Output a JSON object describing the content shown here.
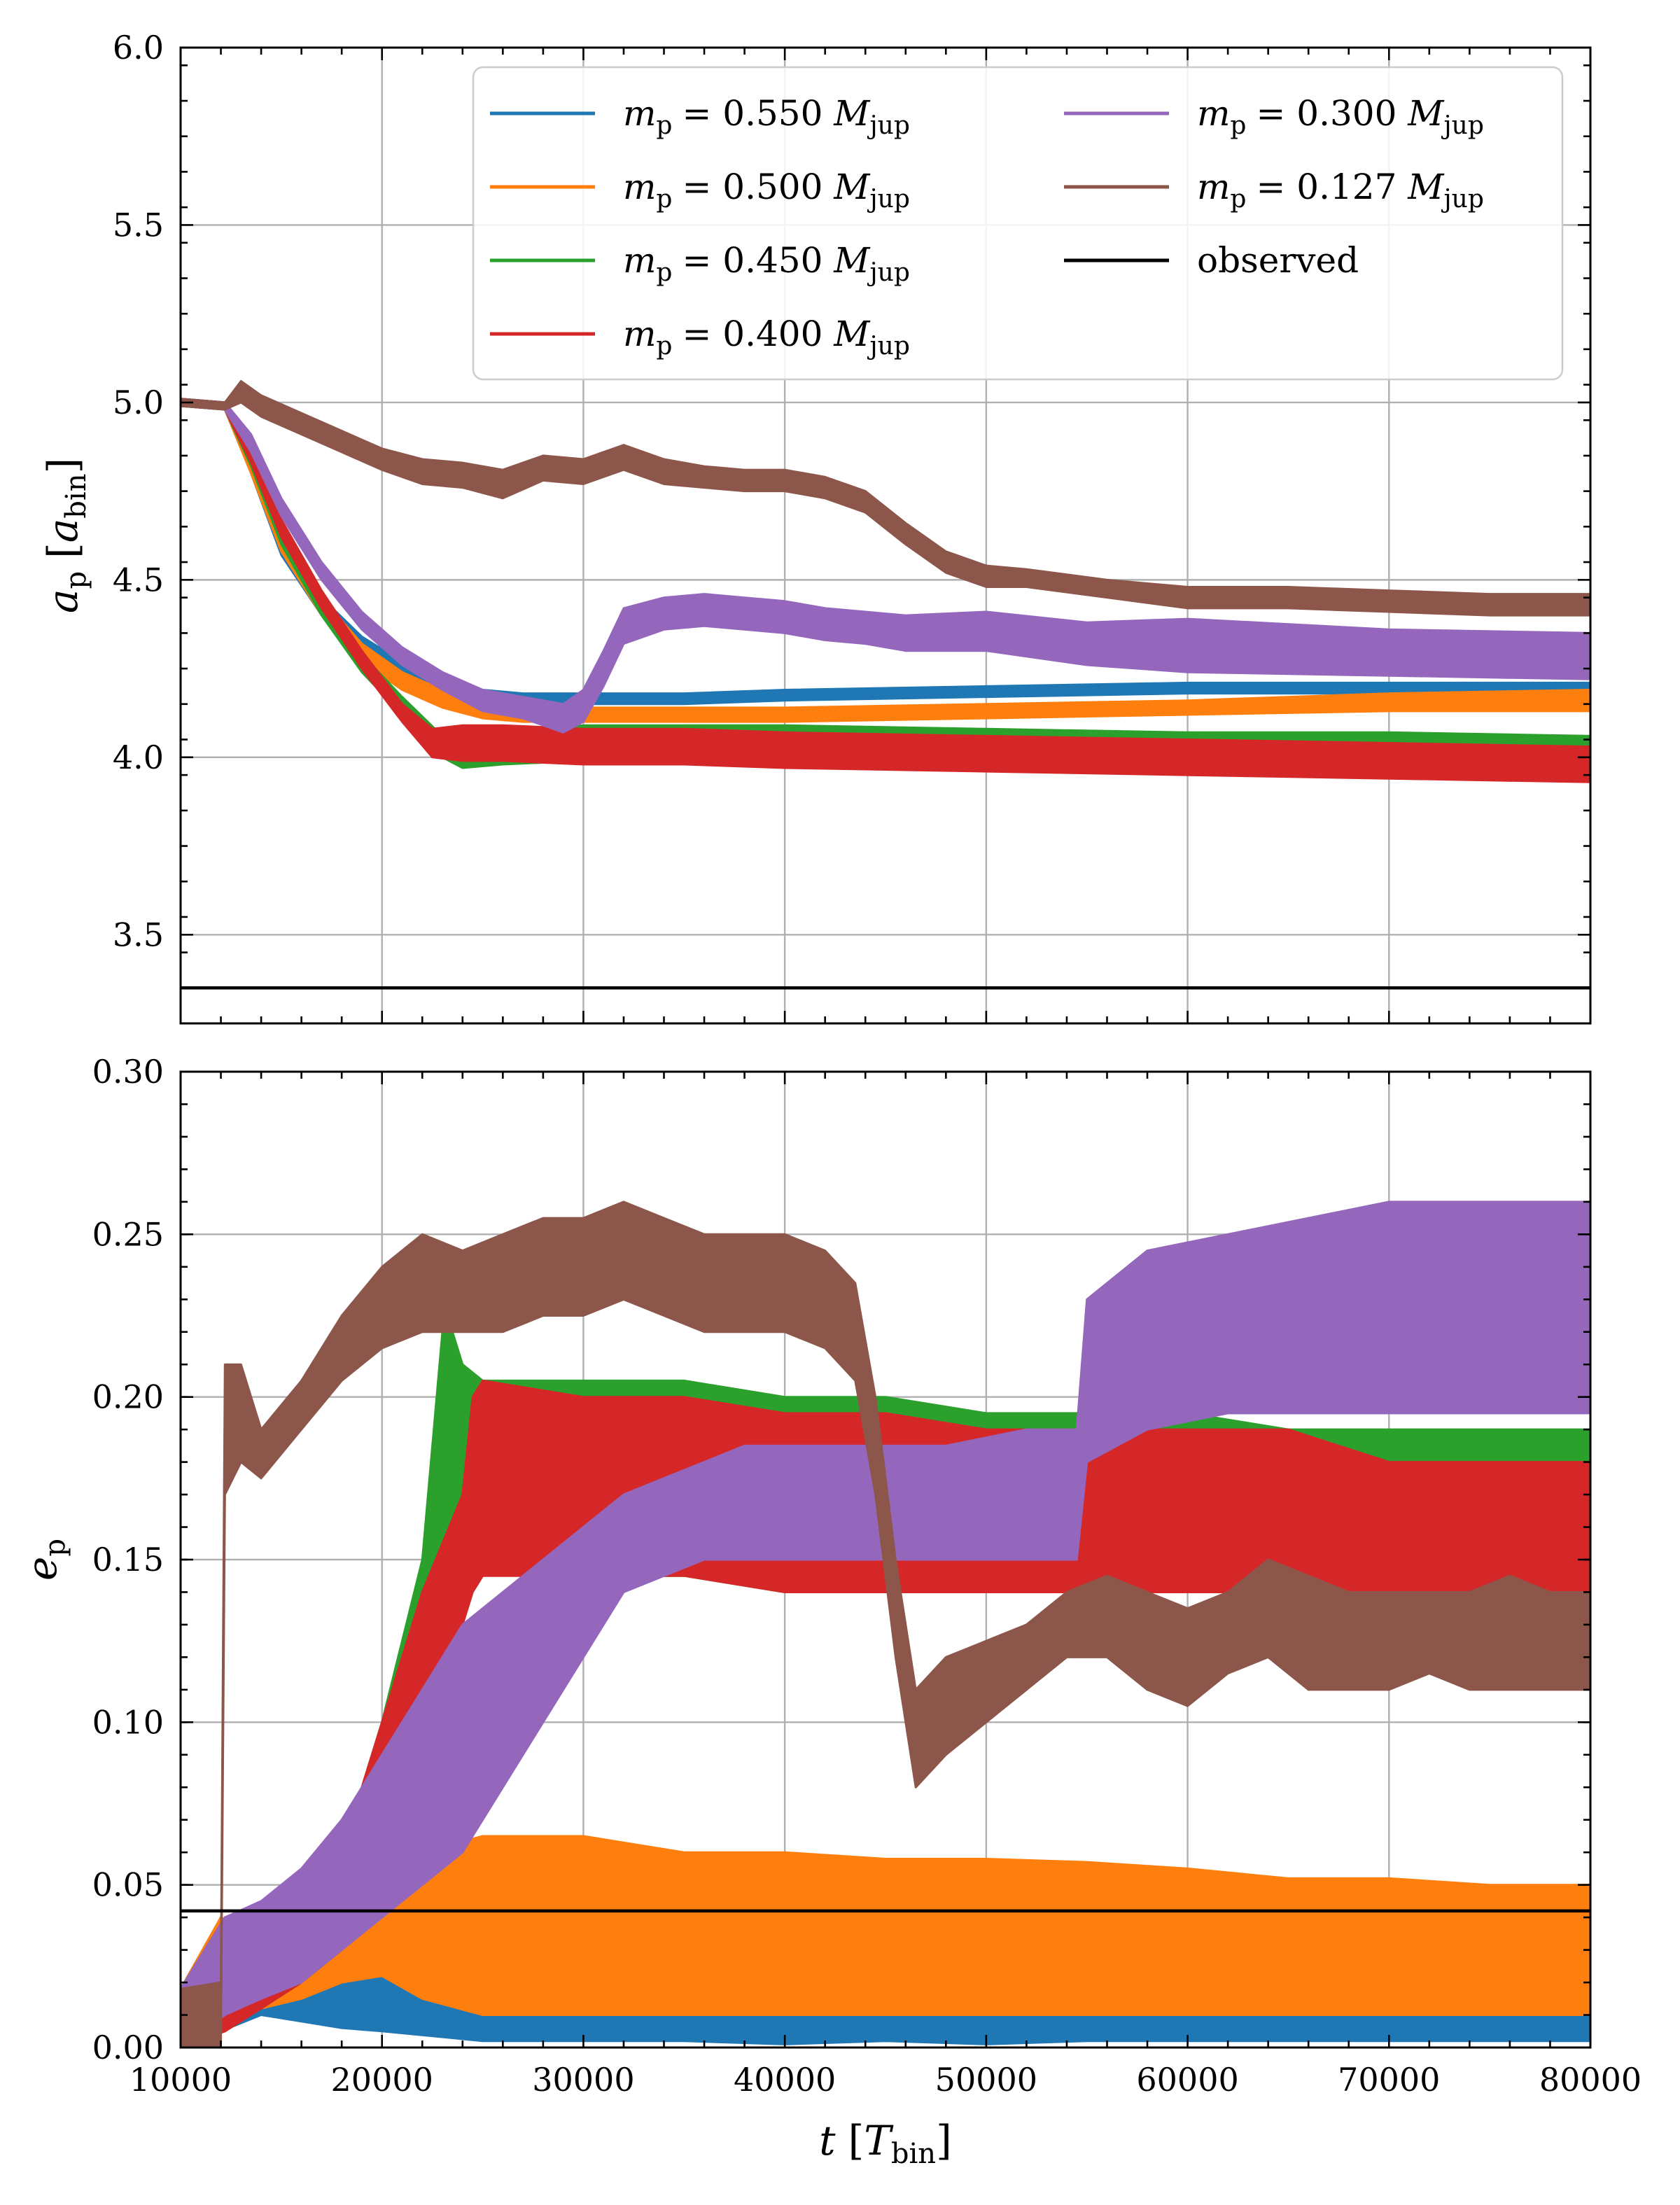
{
  "chart_data": [
    {
      "type": "line",
      "panel": "top",
      "ylabel": "a_p [a_bin]",
      "ylabel_main": "a",
      "ylabel_sub": "p",
      "ylabel_unit_main": "a",
      "ylabel_unit_sub": "bin",
      "xlim": [
        10000,
        80000
      ],
      "ylim": [
        3.25,
        6.0
      ],
      "x_ticks": [
        10000,
        20000,
        30000,
        40000,
        50000,
        60000,
        70000,
        80000
      ],
      "y_ticks": [
        3.5,
        4.0,
        4.5,
        5.0,
        5.5,
        6.0
      ],
      "y_tick_labels": [
        "3.5",
        "4.0",
        "4.5",
        "5.0",
        "5.5",
        "6.0"
      ],
      "grid": true,
      "legend_position": "top-right",
      "series": [
        {
          "name": "m_p = 0.550 M_jup",
          "mass": "0.550",
          "color": "#1f77b4",
          "x": [
            10000,
            12200,
            13500,
            15000,
            17000,
            19000,
            21000,
            23000,
            25000,
            27000,
            30000,
            35000,
            40000,
            50000,
            60000,
            70000,
            80000
          ],
          "lower": [
            4.99,
            4.98,
            4.8,
            4.57,
            4.4,
            4.29,
            4.22,
            4.18,
            4.16,
            4.15,
            4.15,
            4.15,
            4.16,
            4.17,
            4.18,
            4.18,
            4.18
          ],
          "upper": [
            5.01,
            5.0,
            4.85,
            4.62,
            4.45,
            4.34,
            4.27,
            4.22,
            4.19,
            4.18,
            4.18,
            4.18,
            4.19,
            4.2,
            4.21,
            4.21,
            4.21
          ]
        },
        {
          "name": "m_p = 0.500 M_jup",
          "mass": "0.500",
          "color": "#ff7f0e",
          "x": [
            10000,
            12200,
            13500,
            15000,
            17000,
            19000,
            21000,
            23000,
            25000,
            27000,
            30000,
            35000,
            40000,
            50000,
            60000,
            70000,
            80000
          ],
          "lower": [
            4.99,
            4.98,
            4.8,
            4.58,
            4.4,
            4.27,
            4.19,
            4.14,
            4.11,
            4.1,
            4.1,
            4.1,
            4.1,
            4.11,
            4.12,
            4.13,
            4.13
          ],
          "upper": [
            5.01,
            5.0,
            4.85,
            4.63,
            4.45,
            4.32,
            4.24,
            4.19,
            4.16,
            4.15,
            4.14,
            4.14,
            4.14,
            4.15,
            4.16,
            4.18,
            4.19
          ]
        },
        {
          "name": "m_p = 0.450 M_jup",
          "mass": "0.450",
          "color": "#2ca02c",
          "x": [
            10000,
            12200,
            13500,
            15000,
            17000,
            19000,
            21000,
            23000,
            24000,
            26000,
            30000,
            35000,
            40000,
            50000,
            60000,
            70000,
            80000
          ],
          "lower": [
            4.99,
            4.98,
            4.82,
            4.6,
            4.4,
            4.24,
            4.12,
            4.0,
            3.97,
            3.98,
            3.99,
            3.99,
            3.99,
            3.98,
            3.98,
            3.98,
            3.97
          ],
          "upper": [
            5.01,
            5.0,
            4.87,
            4.65,
            4.45,
            4.29,
            4.17,
            4.06,
            4.05,
            4.07,
            4.09,
            4.09,
            4.09,
            4.08,
            4.07,
            4.07,
            4.06
          ]
        },
        {
          "name": "m_p = 0.400 M_jup",
          "mass": "0.400",
          "color": "#d62728",
          "x": [
            10000,
            12200,
            13500,
            15000,
            17000,
            19000,
            21000,
            22500,
            24000,
            26000,
            30000,
            35000,
            40000,
            50000,
            60000,
            70000,
            80000
          ],
          "lower": [
            4.99,
            4.98,
            4.83,
            4.62,
            4.42,
            4.25,
            4.1,
            4.0,
            3.99,
            3.99,
            3.98,
            3.98,
            3.97,
            3.96,
            3.95,
            3.94,
            3.93
          ],
          "upper": [
            5.01,
            5.0,
            4.88,
            4.67,
            4.47,
            4.3,
            4.15,
            4.08,
            4.09,
            4.09,
            4.08,
            4.08,
            4.07,
            4.06,
            4.05,
            4.04,
            4.03
          ]
        },
        {
          "name": "m_p = 0.300 M_jup",
          "mass": "0.300",
          "color": "#9467bd",
          "x": [
            10000,
            12200,
            13500,
            15000,
            17000,
            19000,
            21000,
            23000,
            25000,
            27000,
            29000,
            30000,
            31000,
            32000,
            34000,
            36000,
            38000,
            40000,
            42000,
            44000,
            46000,
            50000,
            55000,
            60000,
            70000,
            80000
          ],
          "lower": [
            4.99,
            4.98,
            4.86,
            4.68,
            4.5,
            4.36,
            4.26,
            4.19,
            4.13,
            4.11,
            4.07,
            4.1,
            4.2,
            4.32,
            4.36,
            4.37,
            4.36,
            4.35,
            4.33,
            4.32,
            4.3,
            4.3,
            4.26,
            4.24,
            4.23,
            4.22
          ],
          "upper": [
            5.01,
            5.0,
            4.91,
            4.73,
            4.55,
            4.41,
            4.31,
            4.24,
            4.19,
            4.17,
            4.15,
            4.19,
            4.3,
            4.42,
            4.45,
            4.46,
            4.45,
            4.44,
            4.42,
            4.41,
            4.4,
            4.41,
            4.38,
            4.39,
            4.36,
            4.35
          ]
        },
        {
          "name": "m_p = 0.127 M_jup",
          "mass": "0.127",
          "color": "#8c564b",
          "x": [
            10000,
            12200,
            13000,
            14000,
            16000,
            18000,
            20000,
            22000,
            24000,
            26000,
            28000,
            30000,
            32000,
            34000,
            36000,
            38000,
            40000,
            42000,
            44000,
            46000,
            48000,
            50000,
            52000,
            56000,
            60000,
            65000,
            70000,
            75000,
            80000
          ],
          "lower": [
            4.99,
            4.98,
            5.0,
            4.96,
            4.91,
            4.86,
            4.81,
            4.77,
            4.76,
            4.73,
            4.78,
            4.77,
            4.81,
            4.77,
            4.76,
            4.75,
            4.75,
            4.73,
            4.69,
            4.6,
            4.52,
            4.48,
            4.48,
            4.45,
            4.42,
            4.42,
            4.41,
            4.4,
            4.4
          ],
          "upper": [
            5.01,
            5.0,
            5.06,
            5.02,
            4.97,
            4.92,
            4.87,
            4.84,
            4.83,
            4.81,
            4.85,
            4.84,
            4.88,
            4.84,
            4.82,
            4.81,
            4.81,
            4.79,
            4.75,
            4.66,
            4.58,
            4.54,
            4.53,
            4.5,
            4.48,
            4.48,
            4.47,
            4.46,
            4.46
          ]
        }
      ],
      "observed": 3.35,
      "observed_label": "observed"
    },
    {
      "type": "line",
      "panel": "bottom",
      "xlabel": "t [T_bin]",
      "xlabel_main": "t",
      "xlabel_unit_main": "T",
      "xlabel_unit_sub": "bin",
      "ylabel": "e_p",
      "ylabel_main": "e",
      "ylabel_sub": "p",
      "xlim": [
        10000,
        80000
      ],
      "ylim": [
        0.0,
        0.3
      ],
      "x_ticks": [
        10000,
        20000,
        30000,
        40000,
        50000,
        60000,
        70000,
        80000
      ],
      "x_tick_labels": [
        "10000",
        "20000",
        "30000",
        "40000",
        "50000",
        "60000",
        "70000",
        "80000"
      ],
      "y_ticks": [
        0.0,
        0.05,
        0.1,
        0.15,
        0.2,
        0.25,
        0.3
      ],
      "y_tick_labels": [
        "0.00",
        "0.05",
        "0.10",
        "0.15",
        "0.20",
        "0.25",
        "0.30"
      ],
      "grid": true,
      "series": [
        {
          "name": "m_p = 0.550 M_jup",
          "color": "#1f77b4",
          "x": [
            10000,
            12000,
            14000,
            16000,
            18000,
            20000,
            25000,
            30000,
            35000,
            40000,
            45000,
            50000,
            55000,
            60000,
            65000,
            70000,
            75000,
            80000
          ],
          "lower": [
            0.0,
            0.005,
            0.01,
            0.008,
            0.006,
            0.005,
            0.002,
            0.002,
            0.002,
            0.001,
            0.002,
            0.001,
            0.002,
            0.002,
            0.002,
            0.002,
            0.002,
            0.002
          ],
          "upper": [
            0.018,
            0.04,
            0.03,
            0.03,
            0.032,
            0.035,
            0.06,
            0.06,
            0.055,
            0.055,
            0.055,
            0.05,
            0.05,
            0.05,
            0.048,
            0.045,
            0.045,
            0.045
          ]
        },
        {
          "name": "m_p = 0.500 M_jup",
          "color": "#ff7f0e",
          "x": [
            10000,
            12000,
            14000,
            16000,
            18000,
            20000,
            22000,
            25000,
            30000,
            35000,
            40000,
            45000,
            50000,
            55000,
            60000,
            65000,
            70000,
            75000,
            80000
          ],
          "lower": [
            0.0,
            0.01,
            0.012,
            0.015,
            0.02,
            0.022,
            0.015,
            0.01,
            0.01,
            0.01,
            0.01,
            0.01,
            0.01,
            0.01,
            0.01,
            0.01,
            0.01,
            0.01,
            0.01
          ],
          "upper": [
            0.018,
            0.04,
            0.03,
            0.035,
            0.04,
            0.05,
            0.06,
            0.065,
            0.065,
            0.06,
            0.06,
            0.058,
            0.058,
            0.057,
            0.055,
            0.052,
            0.052,
            0.05,
            0.05
          ]
        },
        {
          "name": "m_p = 0.450 M_jup",
          "color": "#2ca02c",
          "x": [
            10000,
            12200,
            14000,
            16000,
            18000,
            20000,
            22000,
            23000,
            23500,
            24000,
            25000,
            30000,
            35000,
            40000,
            45000,
            50000,
            55000,
            60000,
            65000,
            70000,
            75000,
            80000
          ],
          "lower": [
            0.0,
            0.005,
            0.012,
            0.02,
            0.03,
            0.06,
            0.09,
            0.14,
            0.15,
            0.15,
            0.15,
            0.145,
            0.145,
            0.14,
            0.14,
            0.14,
            0.14,
            0.14,
            0.14,
            0.14,
            0.14,
            0.14
          ],
          "upper": [
            0.018,
            0.04,
            0.03,
            0.04,
            0.06,
            0.1,
            0.15,
            0.22,
            0.22,
            0.21,
            0.205,
            0.205,
            0.205,
            0.2,
            0.2,
            0.195,
            0.195,
            0.195,
            0.19,
            0.19,
            0.19,
            0.19
          ]
        },
        {
          "name": "m_p = 0.400 M_jup",
          "color": "#d62728",
          "x": [
            10000,
            12200,
            14000,
            16000,
            18000,
            20000,
            22000,
            24000,
            24500,
            25000,
            30000,
            35000,
            40000,
            45000,
            50000,
            55000,
            60000,
            65000,
            70000,
            75000,
            80000
          ],
          "lower": [
            0.0,
            0.005,
            0.012,
            0.02,
            0.03,
            0.06,
            0.09,
            0.13,
            0.14,
            0.145,
            0.145,
            0.145,
            0.14,
            0.14,
            0.14,
            0.14,
            0.14,
            0.14,
            0.14,
            0.14,
            0.14
          ],
          "upper": [
            0.018,
            0.04,
            0.03,
            0.04,
            0.06,
            0.1,
            0.14,
            0.17,
            0.2,
            0.205,
            0.2,
            0.2,
            0.195,
            0.195,
            0.19,
            0.19,
            0.19,
            0.19,
            0.18,
            0.18,
            0.18
          ]
        },
        {
          "name": "m_p = 0.300 M_jup",
          "color": "#9467bd",
          "x": [
            10000,
            12200,
            14000,
            16000,
            18000,
            20000,
            22000,
            24000,
            26000,
            28000,
            30000,
            32000,
            34000,
            36000,
            38000,
            40000,
            44000,
            48000,
            52000,
            54500,
            55000,
            58000,
            62000,
            66000,
            70000,
            74000,
            80000
          ],
          "lower": [
            0.0,
            0.01,
            0.015,
            0.02,
            0.03,
            0.04,
            0.05,
            0.06,
            0.08,
            0.1,
            0.12,
            0.14,
            0.145,
            0.15,
            0.15,
            0.15,
            0.15,
            0.15,
            0.15,
            0.15,
            0.18,
            0.19,
            0.195,
            0.195,
            0.195,
            0.195,
            0.195
          ],
          "upper": [
            0.018,
            0.04,
            0.045,
            0.055,
            0.07,
            0.09,
            0.11,
            0.13,
            0.14,
            0.15,
            0.16,
            0.17,
            0.175,
            0.18,
            0.185,
            0.185,
            0.185,
            0.185,
            0.19,
            0.19,
            0.23,
            0.245,
            0.25,
            0.255,
            0.26,
            0.26,
            0.26
          ]
        },
        {
          "name": "m_p = 0.127 M_jup",
          "color": "#8c564b",
          "x": [
            10000,
            12000,
            12200,
            13000,
            14000,
            16000,
            18000,
            20000,
            22000,
            24000,
            26000,
            28000,
            30000,
            32000,
            34000,
            36000,
            38000,
            40000,
            42000,
            43500,
            44500,
            45500,
            46500,
            48000,
            50000,
            52000,
            54000,
            56000,
            58000,
            60000,
            62000,
            64000,
            66000,
            68000,
            70000,
            72000,
            74000,
            76000,
            78000,
            80000
          ],
          "lower": [
            0.0,
            0.0,
            0.17,
            0.18,
            0.175,
            0.19,
            0.205,
            0.215,
            0.22,
            0.22,
            0.22,
            0.225,
            0.225,
            0.23,
            0.225,
            0.22,
            0.22,
            0.22,
            0.215,
            0.205,
            0.17,
            0.12,
            0.08,
            0.09,
            0.1,
            0.11,
            0.12,
            0.12,
            0.11,
            0.105,
            0.115,
            0.12,
            0.11,
            0.11,
            0.11,
            0.115,
            0.11,
            0.11,
            0.11,
            0.11
          ],
          "upper": [
            0.018,
            0.02,
            0.21,
            0.21,
            0.19,
            0.205,
            0.225,
            0.24,
            0.25,
            0.245,
            0.25,
            0.255,
            0.255,
            0.26,
            0.255,
            0.25,
            0.25,
            0.25,
            0.245,
            0.235,
            0.2,
            0.15,
            0.11,
            0.12,
            0.125,
            0.13,
            0.14,
            0.145,
            0.14,
            0.135,
            0.14,
            0.15,
            0.145,
            0.14,
            0.14,
            0.14,
            0.14,
            0.145,
            0.14,
            0.14
          ]
        }
      ],
      "observed": 0.042
    }
  ]
}
